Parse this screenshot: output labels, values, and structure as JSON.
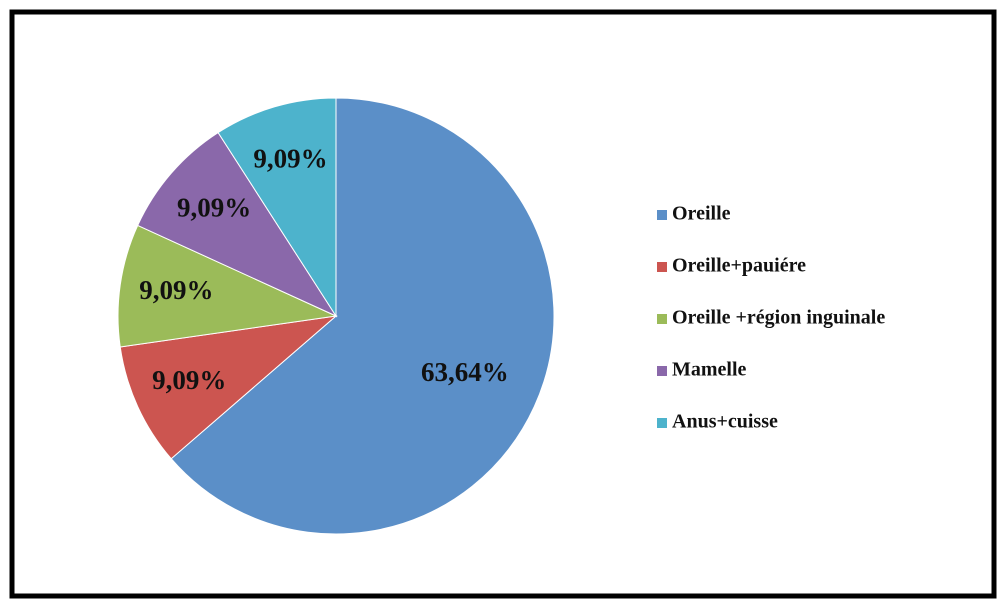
{
  "chart_data": {
    "type": "pie",
    "categories": [
      "Oreille",
      "Oreille+pauiére",
      "Oreille +région inguinale",
      "Mamelle",
      "Anus+cuisse"
    ],
    "values": [
      63.64,
      9.09,
      9.09,
      9.09,
      9.09
    ],
    "value_labels": [
      "63,64%",
      "9,09%",
      "9,09%",
      "9,09%",
      "9,09%"
    ],
    "colors": [
      "#5b8fc8",
      "#cc5550",
      "#9bbb59",
      "#8a68aa",
      "#4db3cc"
    ],
    "legend": "right"
  }
}
